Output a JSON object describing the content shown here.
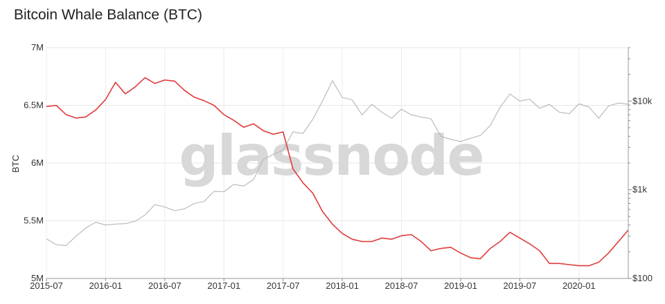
{
  "title": "Bitcoin Whale Balance (BTC)",
  "watermark": "glassnode",
  "chart_data": {
    "type": "line",
    "title": "Bitcoin Whale Balance (BTC)",
    "ylabel": "BTC",
    "y_left": {
      "min": 5000000,
      "max": 7000000,
      "ticks": [
        5000000,
        5500000,
        6000000,
        6500000,
        7000000
      ],
      "tick_labels": [
        "5M",
        "5.5M",
        "6M",
        "6.5M",
        "7M"
      ]
    },
    "y_right": {
      "scale": "log",
      "min": 100,
      "max": 40000,
      "ticks": [
        100,
        1000,
        10000
      ],
      "tick_labels": [
        "$100",
        "$1k",
        "$10k"
      ]
    },
    "x_ticks": [
      "2015-07",
      "2016-01",
      "2016-07",
      "2017-01",
      "2017-07",
      "2018-01",
      "2018-07",
      "2019-01",
      "2019-07",
      "2020-01"
    ],
    "x_range": [
      "2015-07",
      "2020-06"
    ],
    "grid": true,
    "series": [
      {
        "axis": "left",
        "color": "#e03a3a",
        "points": [
          [
            "2015-07",
            6490000
          ],
          [
            "2015-08",
            6500000
          ],
          [
            "2015-09",
            6420000
          ],
          [
            "2015-10",
            6390000
          ],
          [
            "2015-11",
            6400000
          ],
          [
            "2015-12",
            6460000
          ],
          [
            "2016-01",
            6550000
          ],
          [
            "2016-02",
            6700000
          ],
          [
            "2016-03",
            6600000
          ],
          [
            "2016-04",
            6660000
          ],
          [
            "2016-05",
            6740000
          ],
          [
            "2016-06",
            6690000
          ],
          [
            "2016-07",
            6720000
          ],
          [
            "2016-08",
            6710000
          ],
          [
            "2016-09",
            6630000
          ],
          [
            "2016-10",
            6570000
          ],
          [
            "2016-11",
            6540000
          ],
          [
            "2016-12",
            6500000
          ],
          [
            "2017-01",
            6420000
          ],
          [
            "2017-02",
            6370000
          ],
          [
            "2017-03",
            6310000
          ],
          [
            "2017-04",
            6340000
          ],
          [
            "2017-05",
            6280000
          ],
          [
            "2017-06",
            6250000
          ],
          [
            "2017-07",
            6270000
          ],
          [
            "2017-08",
            5950000
          ],
          [
            "2017-09",
            5830000
          ],
          [
            "2017-10",
            5740000
          ],
          [
            "2017-11",
            5580000
          ],
          [
            "2017-12",
            5470000
          ],
          [
            "2018-01",
            5390000
          ],
          [
            "2018-02",
            5340000
          ],
          [
            "2018-03",
            5320000
          ],
          [
            "2018-04",
            5320000
          ],
          [
            "2018-05",
            5350000
          ],
          [
            "2018-06",
            5340000
          ],
          [
            "2018-07",
            5370000
          ],
          [
            "2018-08",
            5380000
          ],
          [
            "2018-09",
            5320000
          ],
          [
            "2018-10",
            5240000
          ],
          [
            "2018-11",
            5260000
          ],
          [
            "2018-12",
            5270000
          ],
          [
            "2019-01",
            5220000
          ],
          [
            "2019-02",
            5180000
          ],
          [
            "2019-03",
            5170000
          ],
          [
            "2019-04",
            5260000
          ],
          [
            "2019-05",
            5320000
          ],
          [
            "2019-06",
            5400000
          ],
          [
            "2019-07",
            5350000
          ],
          [
            "2019-08",
            5300000
          ],
          [
            "2019-09",
            5240000
          ],
          [
            "2019-10",
            5130000
          ],
          [
            "2019-11",
            5130000
          ],
          [
            "2019-12",
            5120000
          ],
          [
            "2020-01",
            5110000
          ],
          [
            "2020-02",
            5110000
          ],
          [
            "2020-03",
            5140000
          ],
          [
            "2020-04",
            5220000
          ],
          [
            "2020-05",
            5320000
          ],
          [
            "2020-06",
            5420000
          ]
        ]
      },
      {
        "axis": "right",
        "color": "#b5b5b5",
        "points": [
          [
            "2015-07",
            280
          ],
          [
            "2015-08",
            240
          ],
          [
            "2015-09",
            235
          ],
          [
            "2015-10",
            300
          ],
          [
            "2015-11",
            370
          ],
          [
            "2015-12",
            430
          ],
          [
            "2016-01",
            400
          ],
          [
            "2016-02",
            410
          ],
          [
            "2016-03",
            415
          ],
          [
            "2016-04",
            440
          ],
          [
            "2016-05",
            520
          ],
          [
            "2016-06",
            680
          ],
          [
            "2016-07",
            640
          ],
          [
            "2016-08",
            580
          ],
          [
            "2016-09",
            610
          ],
          [
            "2016-10",
            700
          ],
          [
            "2016-11",
            740
          ],
          [
            "2016-12",
            960
          ],
          [
            "2017-01",
            950
          ],
          [
            "2017-02",
            1150
          ],
          [
            "2017-03",
            1100
          ],
          [
            "2017-04",
            1300
          ],
          [
            "2017-05",
            2200
          ],
          [
            "2017-06",
            2500
          ],
          [
            "2017-07",
            2800
          ],
          [
            "2017-08",
            4500
          ],
          [
            "2017-09",
            4300
          ],
          [
            "2017-10",
            6200
          ],
          [
            "2017-11",
            10000
          ],
          [
            "2017-12",
            17000
          ],
          [
            "2018-01",
            11000
          ],
          [
            "2018-02",
            10300
          ],
          [
            "2018-03",
            7000
          ],
          [
            "2018-04",
            9200
          ],
          [
            "2018-05",
            7500
          ],
          [
            "2018-06",
            6400
          ],
          [
            "2018-07",
            8100
          ],
          [
            "2018-08",
            7000
          ],
          [
            "2018-09",
            6600
          ],
          [
            "2018-10",
            6300
          ],
          [
            "2018-11",
            4000
          ],
          [
            "2018-12",
            3700
          ],
          [
            "2019-01",
            3500
          ],
          [
            "2019-02",
            3800
          ],
          [
            "2019-03",
            4100
          ],
          [
            "2019-04",
            5300
          ],
          [
            "2019-05",
            8500
          ],
          [
            "2019-06",
            12000
          ],
          [
            "2019-07",
            10000
          ],
          [
            "2019-08",
            10500
          ],
          [
            "2019-09",
            8300
          ],
          [
            "2019-10",
            9200
          ],
          [
            "2019-11",
            7500
          ],
          [
            "2019-12",
            7200
          ],
          [
            "2020-01",
            9300
          ],
          [
            "2020-02",
            8600
          ],
          [
            "2020-03",
            6400
          ],
          [
            "2020-04",
            8800
          ],
          [
            "2020-05",
            9500
          ],
          [
            "2020-06",
            9200
          ]
        ]
      }
    ]
  }
}
